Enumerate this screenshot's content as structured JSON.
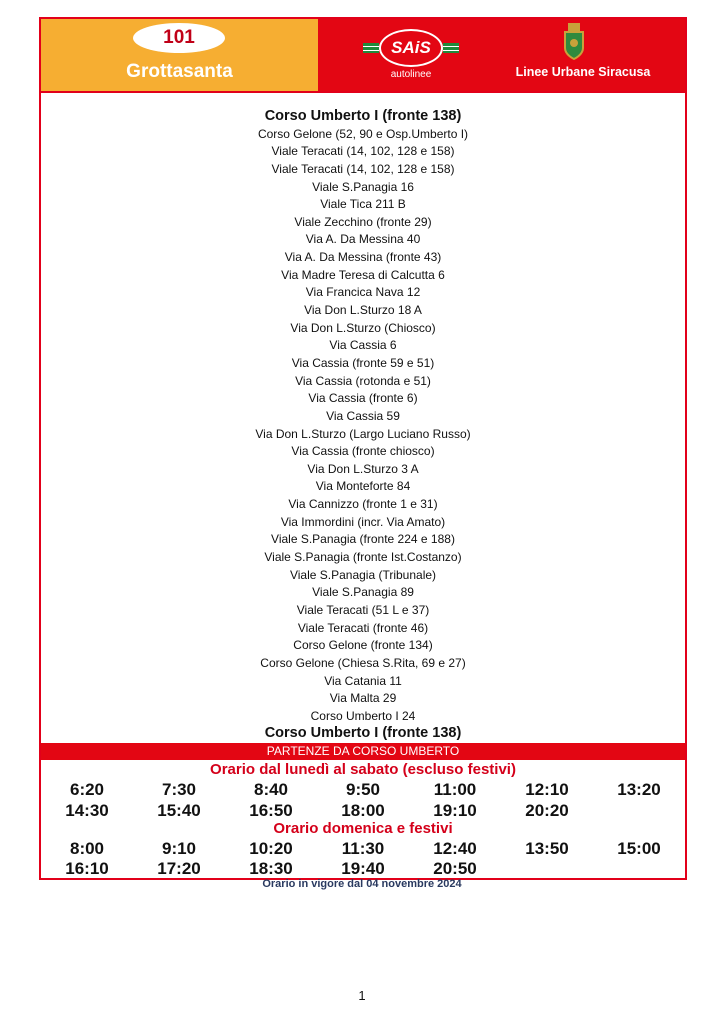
{
  "header": {
    "line_number": "101",
    "line_name": "Grottasanta",
    "operator_logo_text": "SAiS",
    "operator_sub": "autolinee",
    "city_label": "Linee Urbane Siracusa",
    "accent": "#e30613",
    "line_bg": "#f6ae32"
  },
  "stops": [
    "Corso Umberto I (fronte 138)",
    "Corso Gelone (52, 90 e Osp.Umberto I)",
    "Viale Teracati (14, 102, 128 e 158)",
    "Viale Teracati (14, 102, 128 e 158)",
    "Viale S.Panagia 16",
    "Viale Tica 211 B",
    "Viale Zecchino (fronte 29)",
    "Via A. Da Messina 40",
    "Via A. Da Messina (fronte 43)",
    "Via Madre Teresa di Calcutta 6",
    "Via Francica Nava 12",
    "Via Don L.Sturzo 18 A",
    "Via Don L.Sturzo (Chiosco)",
    "Via Cassia 6",
    "Via Cassia (fronte 59 e 51)",
    "Via Cassia (rotonda e 51)",
    "Via Cassia (fronte 6)",
    "Via Cassia 59",
    "Via Don L.Sturzo (Largo Luciano Russo)",
    "Via Cassia (fronte chiosco)",
    "Via Don L.Sturzo 3 A",
    "Via Monteforte 84",
    "Via Cannizzo (fronte 1 e 31)",
    "Via Immordini (incr. Via Amato)",
    "Viale S.Panagia (fronte 224 e 188)",
    "Viale S.Panagia (fronte Ist.Costanzo)",
    "Viale S.Panagia (Tribunale)",
    "Viale S.Panagia 89",
    "Viale Teracati (51 L e 37)",
    "Viale Teracati (fronte 46)",
    "Corso Gelone (fronte 134)",
    "Corso Gelone (Chiesa S.Rita, 69 e 27)",
    "Via Catania 11",
    "Via Malta 29",
    "Corso Umberto I 24",
    "Corso Umberto I (fronte 138)"
  ],
  "departures": {
    "title": "PARTENZE DA CORSO UMBERTO",
    "weekday": {
      "title": "Orario dal lunedì al sabato (escluso festivi)",
      "rows": [
        [
          "6:20",
          "7:30",
          "8:40",
          "9:50",
          "11:00",
          "12:10",
          "13:20"
        ],
        [
          "14:30",
          "15:40",
          "16:50",
          "18:00",
          "19:10",
          "20:20",
          ""
        ]
      ]
    },
    "holiday": {
      "title": "Orario domenica e festivi",
      "rows": [
        [
          "8:00",
          "9:10",
          "10:20",
          "11:30",
          "12:40",
          "13:50",
          "15:00"
        ],
        [
          "16:10",
          "17:20",
          "18:30",
          "19:40",
          "20:50",
          "",
          ""
        ]
      ]
    }
  },
  "footer": {
    "validity": "Orario in vigore dal 04 novembre 2024",
    "page_number": "1"
  }
}
